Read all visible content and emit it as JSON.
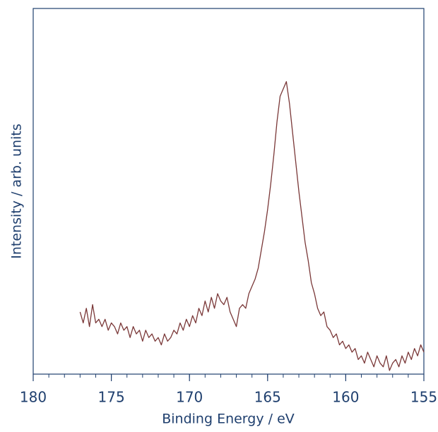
{
  "chart_data": {
    "type": "line",
    "xlabel": "Binding Energy / eV",
    "ylabel": "Intensity / arb. units",
    "xlim": [
      180,
      155
    ],
    "xticks": [
      180,
      175,
      170,
      165,
      160,
      155
    ],
    "ylim": [
      0,
      100
    ],
    "x": [
      177.0,
      176.8,
      176.6,
      176.4,
      176.2,
      176.0,
      175.8,
      175.6,
      175.4,
      175.2,
      175.0,
      174.8,
      174.6,
      174.4,
      174.2,
      174.0,
      173.8,
      173.6,
      173.4,
      173.2,
      173.0,
      172.8,
      172.6,
      172.4,
      172.2,
      172.0,
      171.8,
      171.6,
      171.4,
      171.2,
      171.0,
      170.8,
      170.6,
      170.4,
      170.2,
      170.0,
      169.8,
      169.6,
      169.4,
      169.2,
      169.0,
      168.8,
      168.6,
      168.4,
      168.2,
      168.0,
      167.8,
      167.6,
      167.4,
      167.2,
      167.0,
      166.8,
      166.6,
      166.4,
      166.2,
      166.0,
      165.8,
      165.6,
      165.4,
      165.2,
      165.0,
      164.8,
      164.6,
      164.4,
      164.2,
      164.0,
      163.8,
      163.6,
      163.4,
      163.2,
      163.0,
      162.8,
      162.6,
      162.4,
      162.2,
      162.0,
      161.8,
      161.6,
      161.4,
      161.2,
      161.0,
      160.8,
      160.6,
      160.4,
      160.2,
      160.0,
      159.8,
      159.6,
      159.4,
      159.2,
      159.0,
      158.8,
      158.6,
      158.4,
      158.2,
      158.0,
      157.8,
      157.6,
      157.4,
      157.2,
      157.0,
      156.8,
      156.6,
      156.4,
      156.2,
      156.0,
      155.8,
      155.6,
      155.4,
      155.2,
      155.0
    ],
    "series": [
      {
        "color": "#7a3838",
        "values": [
          17,
          14,
          18,
          13,
          19,
          14,
          15,
          13,
          15,
          12,
          14,
          13,
          11,
          14,
          12,
          13,
          10,
          13,
          11,
          12,
          9,
          12,
          10,
          11,
          9,
          10,
          8,
          11,
          9,
          10,
          12,
          11,
          14,
          12,
          15,
          13,
          16,
          14,
          18,
          16,
          20,
          17,
          21,
          18,
          22,
          20,
          19,
          21,
          17,
          15,
          13,
          18,
          19,
          18,
          22,
          24,
          26,
          29,
          34,
          39,
          45,
          52,
          60,
          69,
          76,
          78,
          80,
          74,
          66,
          58,
          50,
          43,
          36,
          31,
          25,
          22,
          18,
          16,
          17,
          13,
          12,
          10,
          11,
          8,
          9,
          7,
          8,
          6,
          7,
          4,
          5,
          3,
          6,
          4,
          2,
          5,
          3,
          2,
          5,
          1,
          3,
          4,
          2,
          5,
          3,
          6,
          4,
          7,
          5,
          8,
          6
        ]
      }
    ],
    "frame_color": "#1f3f6e"
  }
}
